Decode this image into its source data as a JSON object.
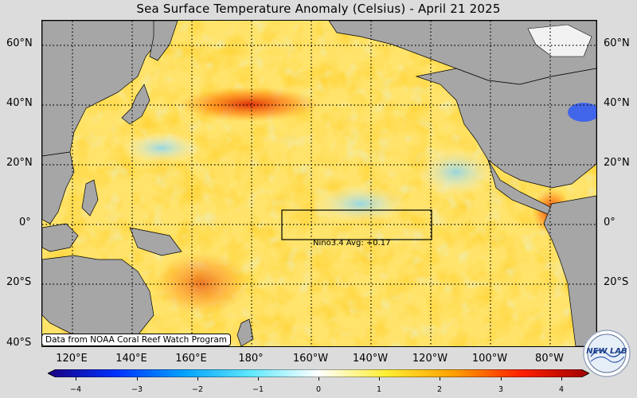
{
  "title": "Sea Surface Temperature Anomaly (Celsius) - April 21 2025",
  "lat_labels": [
    "60°N",
    "40°N",
    "20°N",
    "0°",
    "20°S",
    "40°S"
  ],
  "lon_labels": [
    "120°E",
    "140°E",
    "160°E",
    "180°",
    "160°W",
    "140°W",
    "120°W",
    "100°W",
    "80°W"
  ],
  "nino_box_label": "Nino3.4 Avg: +0.17",
  "credit": "Data from NOAA Coral Reef Watch Program",
  "colorbar": {
    "ticks": [
      "−4",
      "−3",
      "−2",
      "−1",
      "0",
      "1",
      "2",
      "3",
      "4"
    ],
    "min": -4,
    "max": 4,
    "colors": [
      "#1a0080",
      "#0030ff",
      "#00a0ff",
      "#60e8ff",
      "#ffffff",
      "#ffee33",
      "#ffa000",
      "#ff2000",
      "#a00000"
    ]
  },
  "logo_text": "NEW LAB",
  "colors": {
    "land": "#a6a6a6",
    "background": "#dcdcdc",
    "ocean_base": "#ffe36a"
  }
}
